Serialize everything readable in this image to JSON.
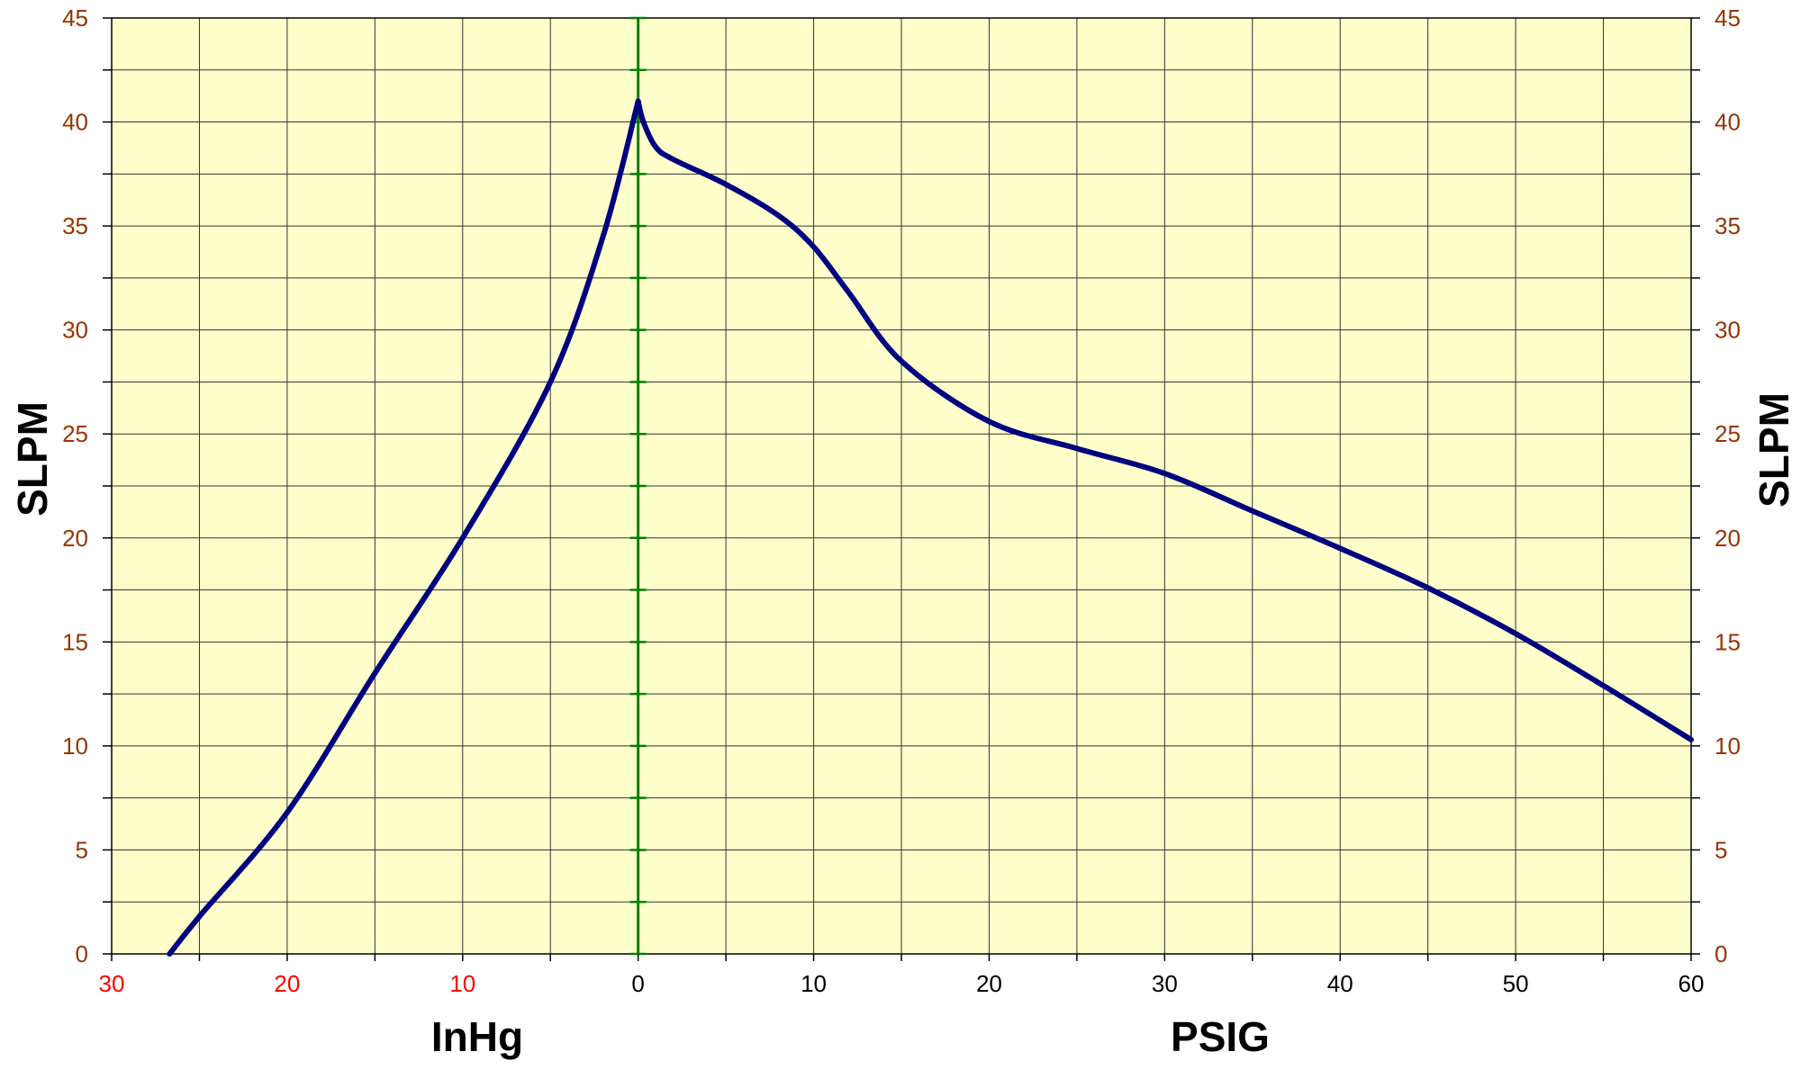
{
  "chart_data": {
    "type": "line",
    "title": "",
    "ylabel_left": "SLPM",
    "ylabel_right": "SLPM",
    "xlabel_vacuum": "InHg",
    "xlabel_pressure": "PSIG",
    "ylim": [
      0,
      45
    ],
    "y_ticks": [
      "0",
      "5",
      "10",
      "15",
      "20",
      "25",
      "30",
      "35",
      "40",
      "45"
    ],
    "x_ticks_vacuum": [
      "30",
      "20",
      "10",
      "0"
    ],
    "x_ticks_pressure": [
      "10",
      "20",
      "30",
      "40",
      "50",
      "60"
    ],
    "grid": true,
    "colors": {
      "plot_bg": "#FFFFCC",
      "grid": "#333333",
      "curve": "#000080",
      "zero_line": "#008000",
      "tick_y": "#993300",
      "tick_vacuum": "#FF0000",
      "tick_pressure": "#000000"
    },
    "vacuum_series": {
      "name": "",
      "x_inhg": [
        26.7,
        25,
        20,
        15,
        10,
        5,
        2,
        0
      ],
      "y": [
        0,
        1.8,
        6.8,
        13.5,
        20,
        27.5,
        34.5,
        41
      ]
    },
    "pressure_series": {
      "name": "",
      "x_psig": [
        0,
        0.3,
        1,
        2,
        5,
        8,
        10,
        12,
        15,
        20,
        25,
        30,
        35,
        40,
        45,
        50,
        55,
        60
      ],
      "y": [
        41,
        40,
        38.8,
        38.2,
        37,
        35.5,
        34,
        31.8,
        28.5,
        25.6,
        24.3,
        23.1,
        21.3,
        19.5,
        17.6,
        15.4,
        12.9,
        10.3
      ]
    }
  }
}
